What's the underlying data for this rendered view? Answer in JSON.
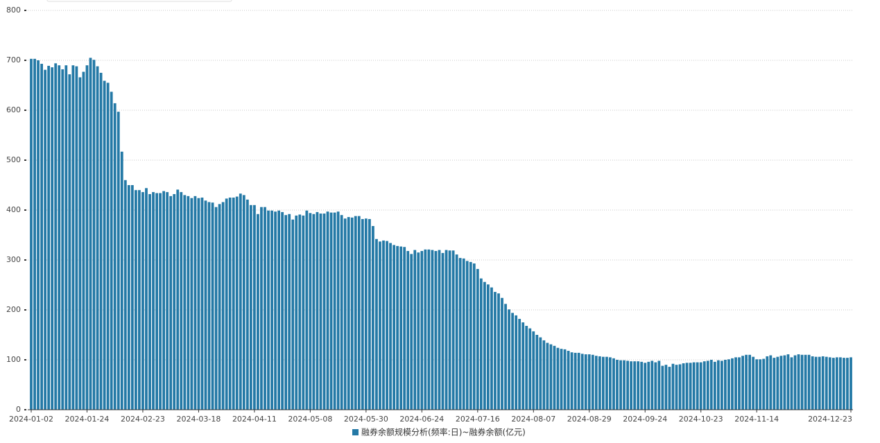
{
  "chart_data": {
    "type": "bar",
    "legend_label": "融券余额规模分析(频率:日)~融券余额(亿元)",
    "color": "#2479a6",
    "ylim": [
      0,
      800
    ],
    "yticks": [
      0,
      100,
      200,
      300,
      400,
      500,
      600,
      700,
      800
    ],
    "grid": true,
    "categories": [
      "2024-01-02",
      null,
      null,
      null,
      null,
      null,
      null,
      null,
      null,
      null,
      null,
      null,
      null,
      null,
      null,
      null,
      "2024-01-24",
      null,
      null,
      null,
      null,
      null,
      null,
      null,
      null,
      null,
      null,
      null,
      null,
      null,
      null,
      null,
      "2024-02-23",
      null,
      null,
      null,
      null,
      null,
      null,
      null,
      null,
      null,
      null,
      null,
      null,
      null,
      null,
      null,
      "2024-03-18",
      null,
      null,
      null,
      null,
      null,
      null,
      null,
      null,
      null,
      null,
      null,
      null,
      null,
      null,
      null,
      "2024-04-11",
      null,
      null,
      null,
      null,
      null,
      null,
      null,
      null,
      null,
      null,
      null,
      null,
      null,
      null,
      null,
      "2024-05-08",
      null,
      null,
      null,
      null,
      null,
      null,
      null,
      null,
      null,
      null,
      null,
      null,
      null,
      null,
      null,
      "2024-05-30",
      null,
      null,
      null,
      null,
      null,
      null,
      null,
      null,
      null,
      null,
      null,
      null,
      null,
      null,
      null,
      "2024-06-24",
      null,
      null,
      null,
      null,
      null,
      null,
      null,
      null,
      null,
      null,
      null,
      null,
      null,
      null,
      null,
      "2024-07-16",
      null,
      null,
      null,
      null,
      null,
      null,
      null,
      null,
      null,
      null,
      null,
      null,
      null,
      null,
      null,
      "2024-08-07",
      null,
      null,
      null,
      null,
      null,
      null,
      null,
      null,
      null,
      null,
      null,
      null,
      null,
      null,
      null,
      "2024-08-29",
      null,
      null,
      null,
      null,
      null,
      null,
      null,
      null,
      null,
      null,
      null,
      null,
      null,
      null,
      null,
      "2024-09-24",
      null,
      null,
      null,
      null,
      null,
      null,
      null,
      null,
      null,
      null,
      null,
      null,
      null,
      null,
      null,
      "2024-10-23",
      null,
      null,
      null,
      null,
      null,
      null,
      null,
      null,
      null,
      null,
      null,
      null,
      null,
      null,
      null,
      "2024-11-14",
      null,
      null,
      null,
      null,
      null,
      null,
      null,
      null,
      null,
      null,
      null,
      null,
      null,
      null,
      null,
      null,
      null,
      null,
      null,
      null,
      null,
      null,
      null,
      null,
      null,
      null,
      "2024-12-23"
    ],
    "values": [
      703,
      703,
      700,
      693,
      681,
      689,
      686,
      694,
      690,
      682,
      690,
      672,
      690,
      688,
      666,
      677,
      690,
      705,
      701,
      688,
      675,
      659,
      655,
      637,
      614,
      597,
      517,
      460,
      450,
      450,
      440,
      440,
      436,
      444,
      432,
      436,
      434,
      434,
      438,
      436,
      428,
      432,
      441,
      436,
      430,
      428,
      424,
      428,
      424,
      425,
      419,
      416,
      415,
      406,
      412,
      416,
      423,
      425,
      425,
      427,
      433,
      430,
      421,
      410,
      410,
      392,
      406,
      406,
      399,
      399,
      397,
      399,
      396,
      390,
      392,
      381,
      389,
      391,
      389,
      399,
      394,
      392,
      396,
      393,
      393,
      397,
      395,
      395,
      397,
      390,
      383,
      386,
      385,
      388,
      388,
      382,
      383,
      382,
      368,
      342,
      337,
      339,
      338,
      334,
      330,
      328,
      327,
      326,
      318,
      312,
      320,
      315,
      318,
      321,
      321,
      320,
      318,
      320,
      314,
      320,
      319,
      319,
      311,
      304,
      303,
      298,
      296,
      293,
      282,
      263,
      256,
      251,
      245,
      236,
      233,
      224,
      212,
      201,
      194,
      189,
      182,
      175,
      168,
      163,
      157,
      150,
      145,
      139,
      134,
      131,
      128,
      124,
      122,
      121,
      118,
      115,
      114,
      114,
      112,
      111,
      111,
      110,
      108,
      107,
      106,
      106,
      105,
      103,
      100,
      99,
      99,
      98,
      97,
      97,
      97,
      96,
      94,
      96,
      98,
      95,
      98,
      88,
      90,
      86,
      92,
      90,
      91,
      93,
      94,
      94,
      95,
      95,
      95,
      97,
      98,
      100,
      96,
      99,
      98,
      100,
      101,
      103,
      105,
      105,
      108,
      110,
      110,
      106,
      101,
      101,
      102,
      107,
      109,
      104,
      106,
      108,
      109,
      111,
      105,
      109,
      111,
      110,
      110,
      110,
      107,
      106,
      106,
      107,
      106,
      105,
      104,
      105,
      105,
      104,
      104,
      105
    ]
  }
}
